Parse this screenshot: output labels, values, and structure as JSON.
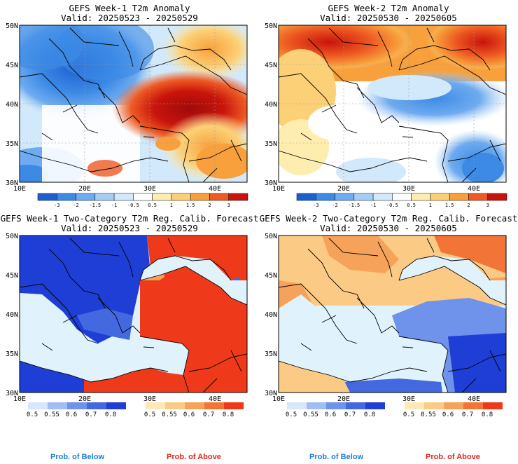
{
  "colors": {
    "below": "#1a7fd8",
    "above": "#e0241c",
    "anomaly_scale": [
      "#1e5fd0",
      "#3c8ae6",
      "#6eabf0",
      "#a5cdf6",
      "#d2e8fb",
      "#ffffff",
      "#ffffff",
      "#fdeeb0",
      "#fcd076",
      "#f8a03c",
      "#ee5a22",
      "#c8140c",
      "#a00a0a"
    ],
    "prob_below_scale": [
      "#d8e6fb",
      "#9fbef2",
      "#6f92ea",
      "#4468e0",
      "#1f3ed6"
    ],
    "prob_above_scale": [
      "#fde9b8",
      "#fbcb86",
      "#f7a25a",
      "#f27436",
      "#ee3a1a"
    ]
  },
  "labels": {
    "prob_below": "Prob. of Below",
    "prob_above": "Prob. of Above"
  },
  "chart_data": [
    {
      "type": "heatmap",
      "title": "GEFS Week-1 T2m Anomaly",
      "subtitle": "Valid: 20250523 - 20250529",
      "x_ticks": [
        "10E",
        "20E",
        "30E",
        "40E"
      ],
      "y_ticks": [
        "50N",
        "45N",
        "40N",
        "35N",
        "30N"
      ],
      "xlim": [
        10,
        45
      ],
      "ylim": [
        30,
        50
      ],
      "colorbar": {
        "ticks": [
          "-3",
          "-2",
          "-1.5",
          "-1",
          "-0.5",
          "0.5",
          "1",
          "1.5",
          "2",
          "3"
        ]
      }
    },
    {
      "type": "heatmap",
      "title": "GEFS Week-2 T2m Anomaly",
      "subtitle": "Valid: 20250530 - 20250605",
      "x_ticks": [
        "10E",
        "20E",
        "30E",
        "40E"
      ],
      "y_ticks": [
        "50N",
        "45N",
        "40N",
        "35N",
        "30N"
      ],
      "xlim": [
        10,
        45
      ],
      "ylim": [
        30,
        50
      ],
      "colorbar": {
        "ticks": [
          "-3",
          "-2",
          "-1.5",
          "-1",
          "-0.5",
          "0.5",
          "1",
          "1.5",
          "2",
          "3"
        ]
      }
    },
    {
      "type": "heatmap",
      "title": "GEFS Week-1 Two-Category T2m Reg. Calib. Forecast",
      "subtitle": "Valid: 20250523 - 20250529",
      "x_ticks": [
        "10E",
        "20E",
        "30E",
        "40E"
      ],
      "y_ticks": [
        "50N",
        "45N",
        "40N",
        "35N",
        "30N"
      ],
      "xlim": [
        10,
        45
      ],
      "ylim": [
        30,
        50
      ],
      "colorbar_below": {
        "ticks": [
          "0.5",
          "0.55",
          "0.6",
          "0.7",
          "0.8"
        ]
      },
      "colorbar_above": {
        "ticks": [
          "0.5",
          "0.55",
          "0.6",
          "0.7",
          "0.8"
        ]
      }
    },
    {
      "type": "heatmap",
      "title": "GEFS Week-2 Two-Category T2m Reg. Calib. Forecast",
      "subtitle": "Valid: 20250530 - 20250605",
      "x_ticks": [
        "10E",
        "20E",
        "30E",
        "40E"
      ],
      "y_ticks": [
        "50N",
        "45N",
        "40N",
        "35N",
        "30N"
      ],
      "xlim": [
        10,
        45
      ],
      "ylim": [
        30,
        50
      ],
      "colorbar_below": {
        "ticks": [
          "0.5",
          "0.55",
          "0.6",
          "0.7",
          "0.8"
        ]
      },
      "colorbar_above": {
        "ticks": [
          "0.5",
          "0.55",
          "0.6",
          "0.7",
          "0.8"
        ]
      }
    }
  ]
}
